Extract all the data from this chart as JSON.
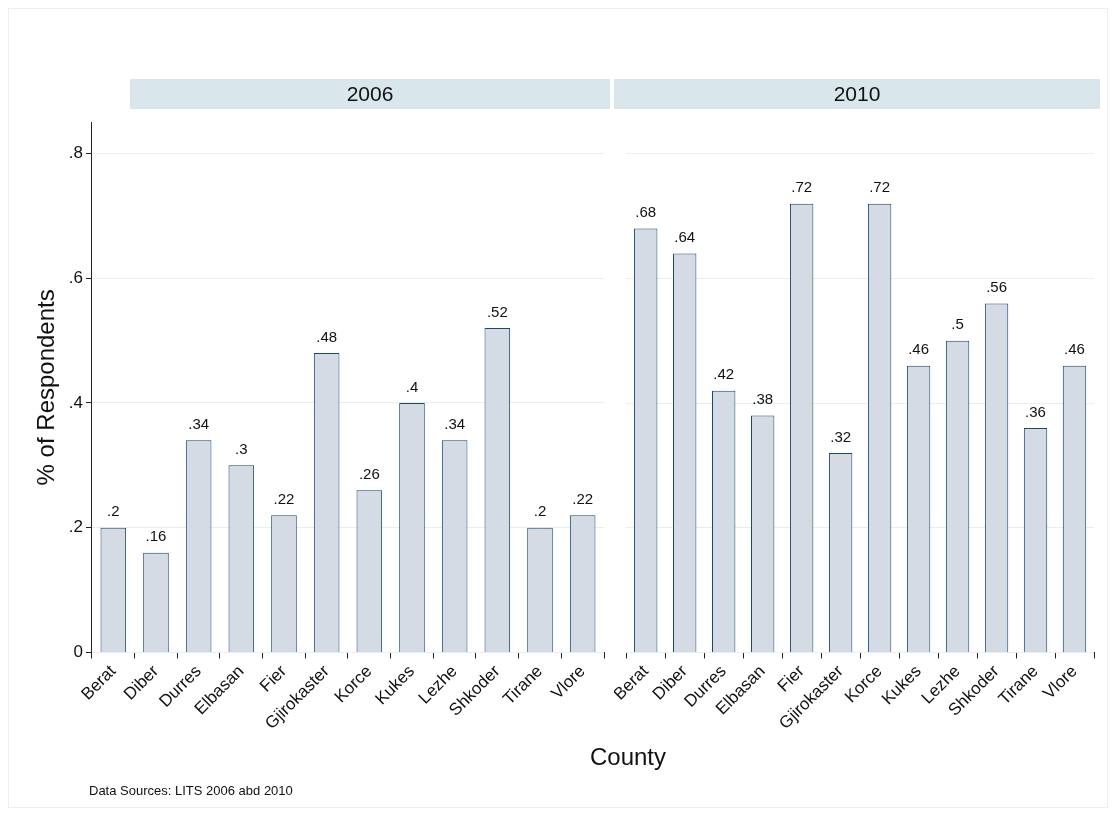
{
  "chart_data": [
    {
      "type": "bar",
      "title": "2006",
      "xlabel": "County",
      "ylabel": "% of Respondents",
      "annotations": [
        "Data Sources: LITS 2006 abd 2010"
      ],
      "categories": [
        "Berat",
        "Diber",
        "Durres",
        "Elbasan",
        "Fier",
        "Gjirokaster",
        "Korce",
        "Kukes",
        "Lezhe",
        "Shkoder",
        "Tirane",
        "Vlore"
      ],
      "values": [
        0.2,
        0.16,
        0.34,
        0.3,
        0.22,
        0.48,
        0.26,
        0.4,
        0.34,
        0.52,
        0.2,
        0.22
      ],
      "value_labels": [
        ".2",
        ".16",
        ".34",
        ".3",
        ".22",
        ".48",
        ".26",
        ".4",
        ".34",
        ".52",
        ".2",
        ".22"
      ],
      "color": "#d4dbe4",
      "ylim": [
        0,
        0.85
      ],
      "yticks": [
        0,
        {
          "value": 0.2,
          "label": ".2"
        },
        {
          "value": 0.4,
          "label": ".4"
        },
        {
          "value": 0.6,
          "label": ".6"
        },
        {
          "value": 0.8,
          "label": ".8"
        }
      ],
      "grid": "y",
      "legend": false
    },
    {
      "type": "bar",
      "title": "2010",
      "categories": [
        "Berat",
        "Diber",
        "Durres",
        "Elbasan",
        "Fier",
        "Gjirokaster",
        "Korce",
        "Kukes",
        "Lezhe",
        "Shkoder",
        "Tirane",
        "Vlore"
      ],
      "values": [
        0.68,
        0.64,
        0.42,
        0.38,
        0.72,
        0.32,
        0.72,
        0.46,
        0.5,
        0.56,
        0.36,
        0.46
      ],
      "value_labels": [
        ".68",
        ".64",
        ".42",
        ".38",
        ".72",
        ".32",
        ".72",
        ".46",
        ".5",
        ".56",
        ".36",
        ".46"
      ],
      "color": "#d4dbe4",
      "yticks": [
        {
          "value": 0,
          "label": null
        },
        {
          "value": 0.2,
          "label": null
        },
        {
          "value": 0.4,
          "label": null
        },
        {
          "value": 0.6,
          "label": null
        },
        {
          "value": 0.8,
          "label": null
        }
      ],
      "grid": "y",
      "legend": false,
      "tick_labels": "x"
    }
  ]
}
